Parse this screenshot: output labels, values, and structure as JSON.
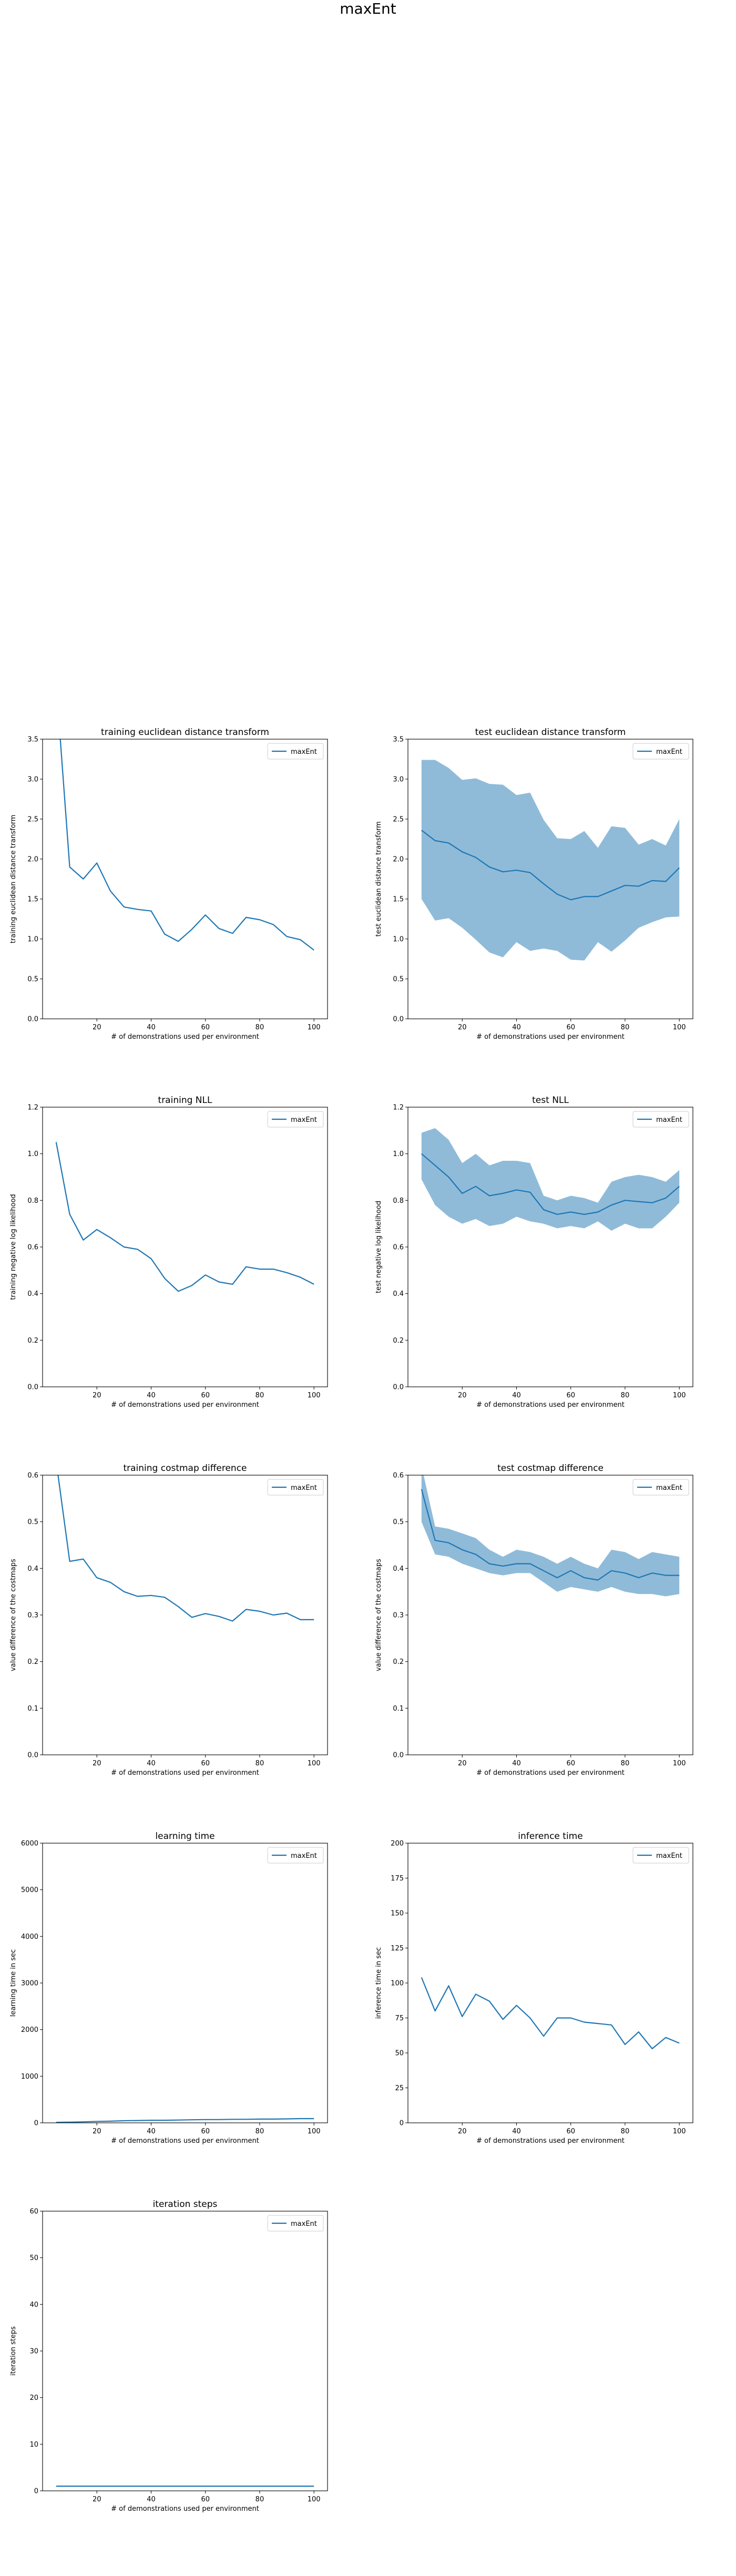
{
  "figure": {
    "title": "maxEnt"
  },
  "chart_data": [
    {
      "type": "line",
      "title": "training euclidean distance transform",
      "xlabel": "# of demonstrations used per environment",
      "ylabel": "training euclidean distance transform",
      "xlim": [
        0,
        105
      ],
      "ylim": [
        0,
        3.5
      ],
      "xticks": [
        20,
        40,
        60,
        80,
        100
      ],
      "yticks": [
        0.0,
        0.5,
        1.0,
        1.5,
        2.0,
        2.5,
        3.0,
        3.5
      ],
      "ytick_labels": [
        "0.0",
        "0.5",
        "1.0",
        "1.5",
        "2.0",
        "2.5",
        "3.0",
        "3.5"
      ],
      "legend": "top-right",
      "color": "#1f77b4",
      "band": false,
      "series": [
        {
          "name": "maxEnt",
          "x": [
            5,
            10,
            15,
            20,
            25,
            30,
            35,
            40,
            45,
            50,
            55,
            60,
            65,
            70,
            75,
            80,
            85,
            90,
            95,
            100
          ],
          "y": [
            4.2,
            1.9,
            1.75,
            1.95,
            1.6,
            1.4,
            1.37,
            1.35,
            1.06,
            0.97,
            1.12,
            1.3,
            1.13,
            1.07,
            1.27,
            1.24,
            1.18,
            1.03,
            0.99,
            0.86
          ]
        }
      ]
    },
    {
      "type": "line",
      "title": "test euclidean distance transform",
      "xlabel": "# of demonstrations used per environment",
      "ylabel": "test euclidean distance transform",
      "xlim": [
        0,
        105
      ],
      "ylim": [
        0,
        3.5
      ],
      "xticks": [
        20,
        40,
        60,
        80,
        100
      ],
      "yticks": [
        0.0,
        0.5,
        1.0,
        1.5,
        2.0,
        2.5,
        3.0,
        3.5
      ],
      "ytick_labels": [
        "0.0",
        "0.5",
        "1.0",
        "1.5",
        "2.0",
        "2.5",
        "3.0",
        "3.5"
      ],
      "legend": "top-right",
      "color": "#1f77b4",
      "band": true,
      "series": [
        {
          "name": "maxEnt",
          "x": [
            5,
            10,
            15,
            20,
            25,
            30,
            35,
            40,
            45,
            50,
            55,
            60,
            65,
            70,
            75,
            80,
            85,
            90,
            95,
            100
          ],
          "y": [
            2.36,
            2.23,
            2.2,
            2.09,
            2.02,
            1.9,
            1.84,
            1.86,
            1.83,
            1.69,
            1.56,
            1.49,
            1.53,
            1.53,
            1.6,
            1.67,
            1.66,
            1.73,
            1.72,
            1.89
          ],
          "lower": [
            1.5,
            1.23,
            1.26,
            1.14,
            0.99,
            0.83,
            0.77,
            0.96,
            0.85,
            0.88,
            0.85,
            0.74,
            0.73,
            0.96,
            0.84,
            0.98,
            1.14,
            1.21,
            1.27,
            1.28
          ],
          "upper": [
            3.24,
            3.24,
            3.14,
            2.99,
            3.01,
            2.94,
            2.93,
            2.8,
            2.83,
            2.49,
            2.26,
            2.25,
            2.35,
            2.14,
            2.41,
            2.39,
            2.18,
            2.25,
            2.17,
            2.5
          ]
        }
      ]
    },
    {
      "type": "line",
      "title": "training NLL",
      "xlabel": "# of demonstrations used per environment",
      "ylabel": "training negative log likelihood",
      "xlim": [
        0,
        105
      ],
      "ylim": [
        0,
        1.2
      ],
      "xticks": [
        20,
        40,
        60,
        80,
        100
      ],
      "yticks": [
        0.0,
        0.2,
        0.4,
        0.6,
        0.8,
        1.0,
        1.2
      ],
      "ytick_labels": [
        "0.0",
        "0.2",
        "0.4",
        "0.6",
        "0.8",
        "1.0",
        "1.2"
      ],
      "legend": "top-right",
      "color": "#1f77b4",
      "band": false,
      "series": [
        {
          "name": "maxEnt",
          "x": [
            5,
            10,
            15,
            20,
            25,
            30,
            35,
            40,
            45,
            50,
            55,
            60,
            65,
            70,
            75,
            80,
            85,
            90,
            95,
            100
          ],
          "y": [
            1.05,
            0.74,
            0.63,
            0.675,
            0.64,
            0.6,
            0.59,
            0.55,
            0.465,
            0.41,
            0.435,
            0.48,
            0.45,
            0.44,
            0.515,
            0.505,
            0.505,
            0.49,
            0.47,
            0.44
          ]
        }
      ]
    },
    {
      "type": "line",
      "title": "test NLL",
      "xlabel": "# of demonstrations used per environment",
      "ylabel": "test negative log likelihood",
      "xlim": [
        0,
        105
      ],
      "ylim": [
        0,
        1.2
      ],
      "xticks": [
        20,
        40,
        60,
        80,
        100
      ],
      "yticks": [
        0.0,
        0.2,
        0.4,
        0.6,
        0.8,
        1.0,
        1.2
      ],
      "ytick_labels": [
        "0.0",
        "0.2",
        "0.4",
        "0.6",
        "0.8",
        "1.0",
        "1.2"
      ],
      "legend": "top-right",
      "color": "#1f77b4",
      "band": true,
      "series": [
        {
          "name": "maxEnt",
          "x": [
            5,
            10,
            15,
            20,
            25,
            30,
            35,
            40,
            45,
            50,
            55,
            60,
            65,
            70,
            75,
            80,
            85,
            90,
            95,
            100
          ],
          "y": [
            1.0,
            0.95,
            0.9,
            0.83,
            0.86,
            0.82,
            0.83,
            0.845,
            0.835,
            0.76,
            0.74,
            0.75,
            0.74,
            0.75,
            0.78,
            0.8,
            0.795,
            0.79,
            0.81,
            0.86
          ],
          "lower": [
            0.89,
            0.78,
            0.73,
            0.7,
            0.72,
            0.69,
            0.7,
            0.73,
            0.71,
            0.7,
            0.68,
            0.69,
            0.68,
            0.71,
            0.67,
            0.7,
            0.68,
            0.68,
            0.73,
            0.79
          ],
          "upper": [
            1.09,
            1.11,
            1.06,
            0.96,
            1.0,
            0.95,
            0.97,
            0.97,
            0.96,
            0.82,
            0.8,
            0.82,
            0.81,
            0.79,
            0.88,
            0.9,
            0.91,
            0.9,
            0.88,
            0.93
          ]
        }
      ]
    },
    {
      "type": "line",
      "title": "training costmap difference",
      "xlabel": "# of demonstrations used per environment",
      "ylabel": "value difference of the costmaps",
      "xlim": [
        0,
        105
      ],
      "ylim": [
        0,
        0.6
      ],
      "xticks": [
        20,
        40,
        60,
        80,
        100
      ],
      "yticks": [
        0.0,
        0.1,
        0.2,
        0.3,
        0.4,
        0.5,
        0.6
      ],
      "ytick_labels": [
        "0.0",
        "0.1",
        "0.2",
        "0.3",
        "0.4",
        "0.5",
        "0.6"
      ],
      "legend": "top-right",
      "color": "#1f77b4",
      "band": false,
      "series": [
        {
          "name": "maxEnt",
          "x": [
            5,
            10,
            15,
            20,
            25,
            30,
            35,
            40,
            45,
            50,
            55,
            60,
            65,
            70,
            75,
            80,
            85,
            90,
            95,
            100
          ],
          "y": [
            0.63,
            0.415,
            0.42,
            0.38,
            0.37,
            0.35,
            0.34,
            0.342,
            0.338,
            0.318,
            0.295,
            0.303,
            0.297,
            0.287,
            0.312,
            0.308,
            0.3,
            0.304,
            0.29,
            0.29
          ]
        }
      ]
    },
    {
      "type": "line",
      "title": "test costmap difference",
      "xlabel": "# of demonstrations used per environment",
      "ylabel": "value difference of the costmaps",
      "xlim": [
        0,
        105
      ],
      "ylim": [
        0,
        0.6
      ],
      "xticks": [
        20,
        40,
        60,
        80,
        100
      ],
      "yticks": [
        0.0,
        0.1,
        0.2,
        0.3,
        0.4,
        0.5,
        0.6
      ],
      "ytick_labels": [
        "0.0",
        "0.1",
        "0.2",
        "0.3",
        "0.4",
        "0.5",
        "0.6"
      ],
      "legend": "top-right",
      "color": "#1f77b4",
      "band": true,
      "series": [
        {
          "name": "maxEnt",
          "x": [
            5,
            10,
            15,
            20,
            25,
            30,
            35,
            40,
            45,
            50,
            55,
            60,
            65,
            70,
            75,
            80,
            85,
            90,
            95,
            100
          ],
          "y": [
            0.57,
            0.46,
            0.455,
            0.44,
            0.43,
            0.41,
            0.405,
            0.41,
            0.41,
            0.395,
            0.38,
            0.395,
            0.38,
            0.375,
            0.395,
            0.39,
            0.38,
            0.39,
            0.385,
            0.385
          ],
          "lower": [
            0.5,
            0.43,
            0.425,
            0.41,
            0.4,
            0.39,
            0.385,
            0.39,
            0.39,
            0.37,
            0.35,
            0.36,
            0.355,
            0.35,
            0.36,
            0.35,
            0.345,
            0.345,
            0.34,
            0.345
          ],
          "upper": [
            0.62,
            0.49,
            0.485,
            0.475,
            0.465,
            0.44,
            0.425,
            0.44,
            0.435,
            0.425,
            0.41,
            0.425,
            0.41,
            0.4,
            0.44,
            0.435,
            0.42,
            0.435,
            0.43,
            0.425
          ]
        }
      ]
    },
    {
      "type": "line",
      "title": "learning time",
      "xlabel": "# of demonstrations used per environment",
      "ylabel": "learning time in sec",
      "xlim": [
        0,
        105
      ],
      "ylim": [
        0,
        6000
      ],
      "xticks": [
        20,
        40,
        60,
        80,
        100
      ],
      "yticks": [
        0,
        1000,
        2000,
        3000,
        4000,
        5000,
        6000
      ],
      "ytick_labels": [
        "0",
        "1000",
        "2000",
        "3000",
        "4000",
        "5000",
        "6000"
      ],
      "legend": "top-right",
      "color": "#1f77b4",
      "band": false,
      "series": [
        {
          "name": "maxEnt",
          "x": [
            5,
            10,
            15,
            20,
            25,
            30,
            35,
            40,
            45,
            50,
            55,
            60,
            65,
            70,
            75,
            80,
            85,
            90,
            95,
            100
          ],
          "y": [
            10,
            15,
            20,
            30,
            35,
            45,
            50,
            55,
            55,
            60,
            65,
            70,
            70,
            75,
            75,
            80,
            80,
            85,
            90,
            90
          ]
        }
      ]
    },
    {
      "type": "line",
      "title": "inference time",
      "xlabel": "# of demonstrations used per environment",
      "ylabel": "inference time in sec",
      "xlim": [
        0,
        105
      ],
      "ylim": [
        0,
        200
      ],
      "xticks": [
        20,
        40,
        60,
        80,
        100
      ],
      "yticks": [
        0,
        25,
        50,
        75,
        100,
        125,
        150,
        175,
        200
      ],
      "ytick_labels": [
        "0",
        "25",
        "50",
        "75",
        "100",
        "125",
        "150",
        "175",
        "200"
      ],
      "legend": "top-right",
      "color": "#1f77b4",
      "band": false,
      "series": [
        {
          "name": "maxEnt",
          "x": [
            5,
            10,
            15,
            20,
            25,
            30,
            35,
            40,
            45,
            50,
            55,
            60,
            65,
            70,
            75,
            80,
            85,
            90,
            95,
            100
          ],
          "y": [
            104,
            80,
            98,
            76,
            92,
            87,
            74,
            84,
            75,
            62,
            75,
            75,
            72,
            71,
            70,
            56,
            65,
            53,
            61,
            57
          ]
        }
      ]
    },
    {
      "type": "line",
      "title": "iteration steps",
      "xlabel": "# of demonstrations used per environment",
      "ylabel": "iteration steps",
      "xlim": [
        0,
        105
      ],
      "ylim": [
        0,
        60
      ],
      "xticks": [
        20,
        40,
        60,
        80,
        100
      ],
      "yticks": [
        0,
        10,
        20,
        30,
        40,
        50,
        60
      ],
      "ytick_labels": [
        "0",
        "10",
        "20",
        "30",
        "40",
        "50",
        "60"
      ],
      "legend": "top-right",
      "color": "#1f77b4",
      "band": false,
      "series": [
        {
          "name": "maxEnt",
          "x": [
            5,
            10,
            15,
            20,
            25,
            30,
            35,
            40,
            45,
            50,
            55,
            60,
            65,
            70,
            75,
            80,
            85,
            90,
            95,
            100
          ],
          "y": [
            1,
            1,
            1,
            1,
            1,
            1,
            1,
            1,
            1,
            1,
            1,
            1,
            1,
            1,
            1,
            1,
            1,
            1,
            1,
            1
          ]
        }
      ]
    }
  ]
}
